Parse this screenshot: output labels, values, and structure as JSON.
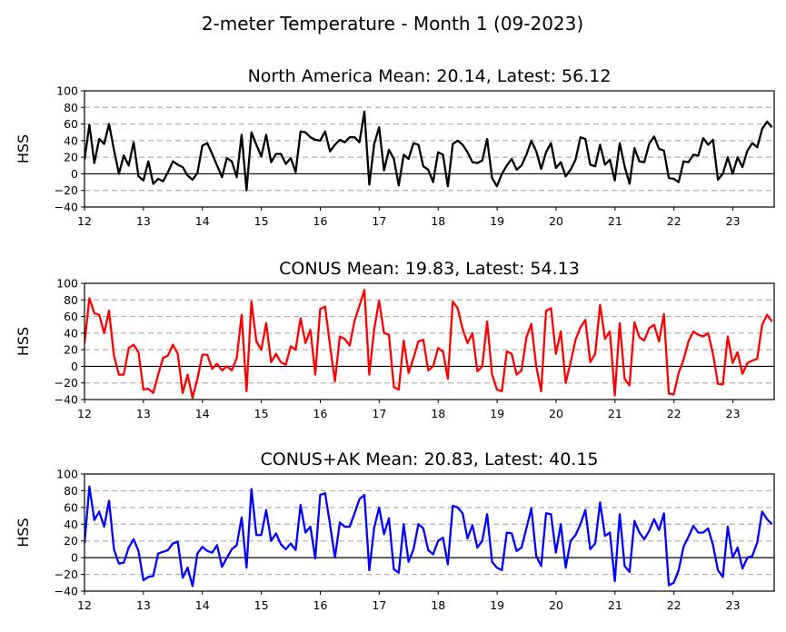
{
  "figure": {
    "suptitle": "2-meter Temperature - Month 1 (09-2023)"
  },
  "chart_data": [
    {
      "type": "line",
      "title": "North America Mean: 20.14, Latest: 56.12",
      "ylabel": "HSS",
      "xlabel": "",
      "color": "#000000",
      "xlim": [
        12,
        23.7
      ],
      "ylim": [
        -40,
        100
      ],
      "x_ticks": [
        12,
        13,
        14,
        15,
        16,
        17,
        18,
        19,
        20,
        21,
        22,
        23
      ],
      "x_tick_labels": [
        "12",
        "13",
        "14",
        "15",
        "16",
        "17",
        "18",
        "19",
        "20",
        "21",
        "22",
        "23"
      ],
      "y_ticks": [
        -40,
        -20,
        0,
        20,
        40,
        60,
        80,
        100
      ],
      "y_tick_labels": [
        "−40",
        "−20",
        "0",
        "20",
        "40",
        "60",
        "80",
        "100"
      ],
      "dashed_gridlines": [
        -20,
        20,
        40,
        60,
        80
      ],
      "zero_line": 0,
      "series": [
        {
          "x_start": 12,
          "x_step": 0.0833,
          "values": [
            17,
            59,
            13,
            42,
            36,
            60,
            29,
            0,
            22,
            10,
            38,
            -3,
            -8,
            15,
            -12,
            -6,
            -9,
            2,
            15,
            11,
            8,
            -2,
            -7,
            1,
            34,
            37,
            24,
            10,
            -4,
            19,
            15,
            -4,
            47,
            -20,
            50,
            35,
            21,
            47,
            14,
            24,
            24,
            12,
            19,
            2,
            51,
            50,
            44,
            41,
            40,
            51,
            27,
            35,
            41,
            38,
            44,
            44,
            38,
            75,
            -13,
            36,
            56,
            4,
            29,
            18,
            -14,
            23,
            18,
            37,
            35,
            9,
            5,
            -10,
            26,
            23,
            -15,
            36,
            40,
            35,
            26,
            14,
            13,
            16,
            42,
            -5,
            -15,
            0,
            10,
            18,
            5,
            10,
            23,
            40,
            27,
            6,
            26,
            37,
            7,
            14,
            -3,
            5,
            17,
            44,
            42,
            11,
            9,
            35,
            11,
            17,
            -8,
            37,
            9,
            -12,
            31,
            15,
            14,
            36,
            45,
            30,
            28,
            -5,
            -6,
            -10,
            15,
            14,
            23,
            22,
            43,
            35,
            41,
            -7,
            0,
            20,
            0,
            20,
            8,
            28,
            37,
            32,
            54,
            63,
            56
          ]
        }
      ]
    },
    {
      "type": "line",
      "title": "CONUS Mean: 19.83, Latest: 54.13",
      "ylabel": "HSS",
      "xlabel": "",
      "color": "#ff0000",
      "xlim": [
        12,
        23.7
      ],
      "ylim": [
        -40,
        100
      ],
      "x_ticks": [
        12,
        13,
        14,
        15,
        16,
        17,
        18,
        19,
        20,
        21,
        22,
        23
      ],
      "x_tick_labels": [
        "12",
        "13",
        "14",
        "15",
        "16",
        "17",
        "18",
        "19",
        "20",
        "21",
        "22",
        "23"
      ],
      "y_ticks": [
        -40,
        -20,
        0,
        20,
        40,
        60,
        80,
        100
      ],
      "y_tick_labels": [
        "−40",
        "−20",
        "0",
        "20",
        "40",
        "60",
        "80",
        "100"
      ],
      "dashed_gridlines": [
        -20,
        20,
        40,
        60,
        80
      ],
      "zero_line": 0,
      "series": [
        {
          "x_start": 12,
          "x_step": 0.0833,
          "values": [
            28,
            82,
            64,
            62,
            40,
            67,
            13,
            -10,
            -10,
            22,
            26,
            17,
            -28,
            -27,
            -32,
            -10,
            10,
            13,
            26,
            15,
            -32,
            -10,
            -38,
            -15,
            14,
            14,
            -3,
            3,
            -5,
            0,
            -5,
            10,
            62,
            -30,
            78,
            30,
            20,
            52,
            5,
            15,
            5,
            2,
            24,
            20,
            58,
            28,
            44,
            -10,
            69,
            72,
            25,
            -18,
            36,
            33,
            25,
            55,
            73,
            92,
            -10,
            45,
            79,
            40,
            38,
            -25,
            -28,
            31,
            -8,
            10,
            30,
            32,
            -5,
            0,
            22,
            18,
            -15,
            78,
            70,
            45,
            28,
            40,
            -6,
            0,
            54,
            -10,
            -28,
            -30,
            18,
            15,
            -10,
            -5,
            35,
            51,
            0,
            -30,
            67,
            70,
            15,
            42,
            -20,
            5,
            32,
            47,
            56,
            5,
            15,
            74,
            33,
            42,
            -35,
            52,
            -15,
            -23,
            53,
            35,
            31,
            46,
            50,
            30,
            63,
            -33,
            -34,
            -8,
            8,
            30,
            42,
            38,
            36,
            40,
            15,
            -21,
            -22,
            36,
            4,
            17,
            -9,
            4,
            7,
            9,
            50,
            62,
            54
          ]
        }
      ]
    },
    {
      "type": "line",
      "title": "CONUS+AK Mean: 20.83, Latest: 40.15",
      "ylabel": "HSS",
      "xlabel": "",
      "color": "#0000ff",
      "xlim": [
        12,
        23.7
      ],
      "ylim": [
        -40,
        100
      ],
      "x_ticks": [
        12,
        13,
        14,
        15,
        16,
        17,
        18,
        19,
        20,
        21,
        22,
        23
      ],
      "x_tick_labels": [
        "12",
        "13",
        "14",
        "15",
        "16",
        "17",
        "18",
        "19",
        "20",
        "21",
        "22",
        "23"
      ],
      "y_ticks": [
        -40,
        -20,
        0,
        20,
        40,
        60,
        80,
        100
      ],
      "y_tick_labels": [
        "−40",
        "−20",
        "0",
        "20",
        "40",
        "60",
        "80",
        "100"
      ],
      "dashed_gridlines": [
        -20,
        20,
        40,
        60,
        80
      ],
      "zero_line": 0,
      "series": [
        {
          "x_start": 12,
          "x_step": 0.0833,
          "values": [
            17,
            85,
            45,
            55,
            37,
            68,
            10,
            -7,
            -6,
            12,
            22,
            8,
            -27,
            -23,
            -22,
            5,
            7,
            9,
            17,
            19,
            -24,
            -12,
            -34,
            5,
            13,
            8,
            6,
            15,
            -11,
            0,
            10,
            15,
            48,
            -12,
            82,
            27,
            27,
            57,
            20,
            29,
            16,
            10,
            17,
            9,
            63,
            30,
            37,
            -1,
            75,
            77,
            40,
            0,
            42,
            37,
            37,
            53,
            70,
            75,
            -15,
            36,
            60,
            28,
            47,
            -14,
            -18,
            40,
            -5,
            10,
            40,
            35,
            9,
            4,
            20,
            24,
            -8,
            62,
            60,
            53,
            23,
            39,
            12,
            20,
            52,
            -5,
            -12,
            -15,
            30,
            29,
            8,
            12,
            35,
            59,
            2,
            -10,
            53,
            52,
            6,
            40,
            -12,
            20,
            27,
            40,
            57,
            10,
            17,
            66,
            26,
            30,
            -28,
            52,
            -10,
            -17,
            44,
            30,
            22,
            32,
            46,
            33,
            53,
            -33,
            -30,
            -15,
            13,
            25,
            38,
            30,
            30,
            35,
            15,
            -15,
            -23,
            37,
            0,
            12,
            -13,
            0,
            2,
            18,
            55,
            46,
            40
          ]
        }
      ]
    }
  ]
}
